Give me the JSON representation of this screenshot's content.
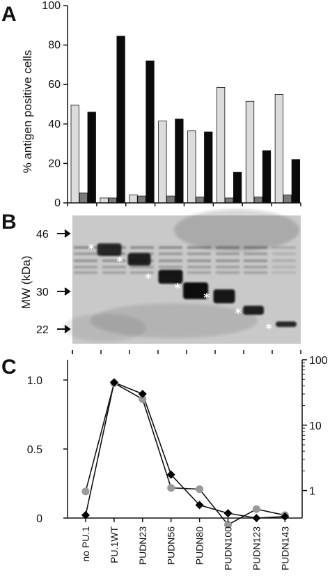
{
  "panels": {
    "a": "A",
    "b": "B",
    "c": "C"
  },
  "colors": {
    "light_bar": "#dcdcdc",
    "mid_bar": "#7a7a7a",
    "dark_bar": "#0a0a0a",
    "gray_marker": "#999999",
    "black_marker": "#000000",
    "blot_bg": "#c9c9c9",
    "band_star": "#ffffff"
  },
  "categories": [
    "no PU.1",
    "PU.1WT",
    "PUDN23",
    "PUDN56",
    "PUDN80",
    "PUDN100",
    "PUDN123",
    "PUDN143"
  ],
  "chart_data": [
    {
      "panel": "A",
      "type": "bar",
      "ylabel": "% antigen positive cells",
      "ylim": [
        0,
        100
      ],
      "yticks": [
        0,
        20,
        40,
        60,
        80,
        100
      ],
      "grid": false,
      "categories": [
        "no PU.1",
        "PU.1WT",
        "PUDN23",
        "PUDN56",
        "PUDN80",
        "PUDN100",
        "PUDN123",
        "PUDN143"
      ],
      "series": [
        {
          "values": [
            49.5,
            2.5,
            4,
            41.5,
            36.5,
            58.5,
            51.5,
            55
          ]
        },
        {
          "values": [
            5,
            2.5,
            3.5,
            3.5,
            3,
            2.5,
            3,
            4
          ]
        },
        {
          "values": [
            46,
            84.5,
            72,
            42.5,
            36,
            15.5,
            26.5,
            22
          ]
        }
      ]
    },
    {
      "panel": "B",
      "type": "blot",
      "ylabel": "MW (kDa)",
      "markers": [
        "46",
        "30",
        "22"
      ],
      "band_mark": "*",
      "lanes": [
        "no PU.1",
        "PU.1WT",
        "PUDN23",
        "PUDN56",
        "PUDN80",
        "PUDN100",
        "PUDN123",
        "PUDN143"
      ]
    },
    {
      "panel": "C",
      "type": "line",
      "categories": [
        "no PU.1",
        "PU.1WT",
        "PUDN23",
        "PUDN56",
        "PUDN80",
        "PUDN100",
        "PUDN123",
        "PUDN143"
      ],
      "left_axis": {
        "ylim": [
          0,
          1.0
        ],
        "ticks": [
          "0",
          "0.5",
          "1.0"
        ]
      },
      "right_axis": {
        "scale": "log",
        "ylim": [
          0.38,
          100
        ],
        "ticks": [
          "1",
          "10",
          "100"
        ]
      },
      "series": [
        {
          "axis": "right",
          "marker": "circle",
          "values": [
            0.97,
            44,
            25,
            1.1,
            1.05,
            0.3,
            0.52,
            0.42
          ]
        },
        {
          "axis": "right",
          "marker": "diamond",
          "values": [
            0.42,
            45,
            30,
            1.75,
            0.6,
            0.45,
            0.38,
            0.4
          ]
        }
      ]
    }
  ]
}
